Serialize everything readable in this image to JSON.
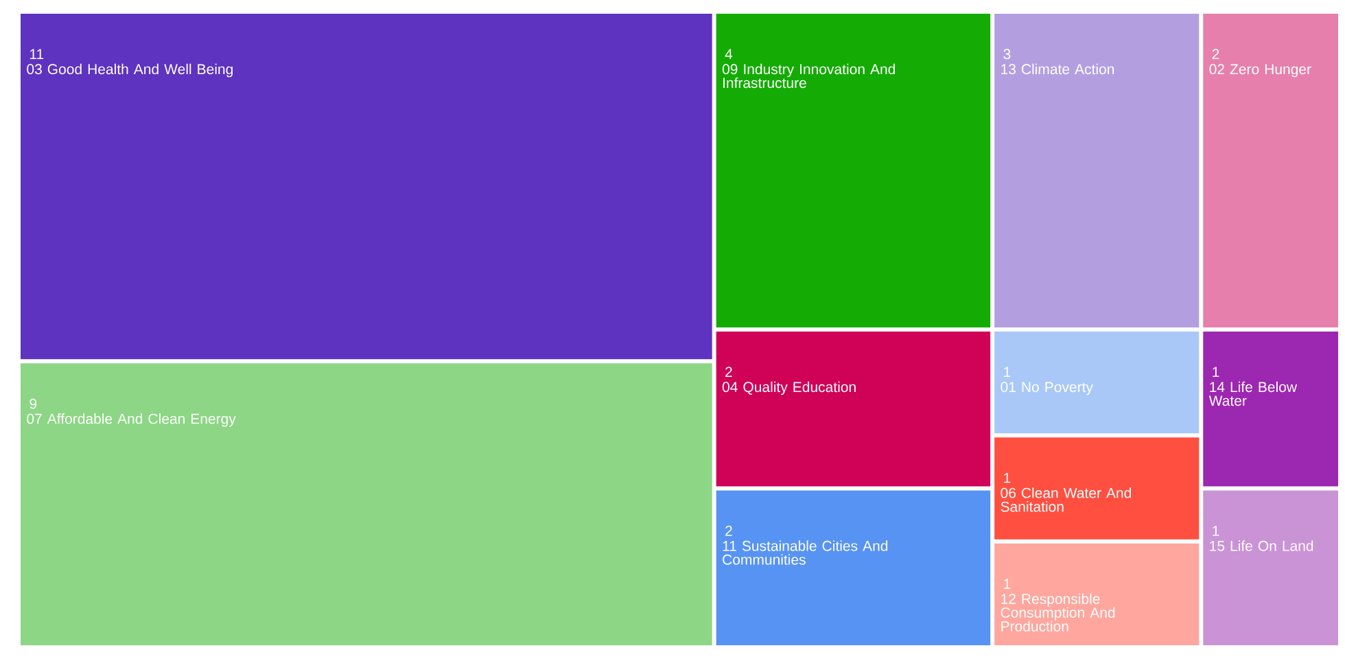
{
  "chart_data": {
    "type": "other",
    "categories": [
      "03 Good Health And Well Being",
      "07 Affordable And Clean Energy",
      "09 Industry Innovation And Infrastructure",
      "04 Quality Education",
      "11 Sustainable Cities And Communities",
      "13 Climate Action",
      "01 No Poverty",
      "06 Clean Water And Sanitation",
      "12 Responsible Consumption And Production",
      "02 Zero Hunger",
      "14 Life Below Water",
      "15 Life On Land"
    ],
    "values": [
      11,
      9,
      4,
      2,
      2,
      3,
      1,
      1,
      1,
      2,
      1,
      1
    ],
    "colors": [
      "#5e33bf",
      "#8cd685",
      "#14ab05",
      "#cf0257",
      "#5793f3",
      "#b39fe0",
      "#a9c8f8",
      "#ff4f40",
      "#ffa69e",
      "#e67fab",
      "#9c27b0",
      "#ca93d6"
    ],
    "data_labels": true
  }
}
